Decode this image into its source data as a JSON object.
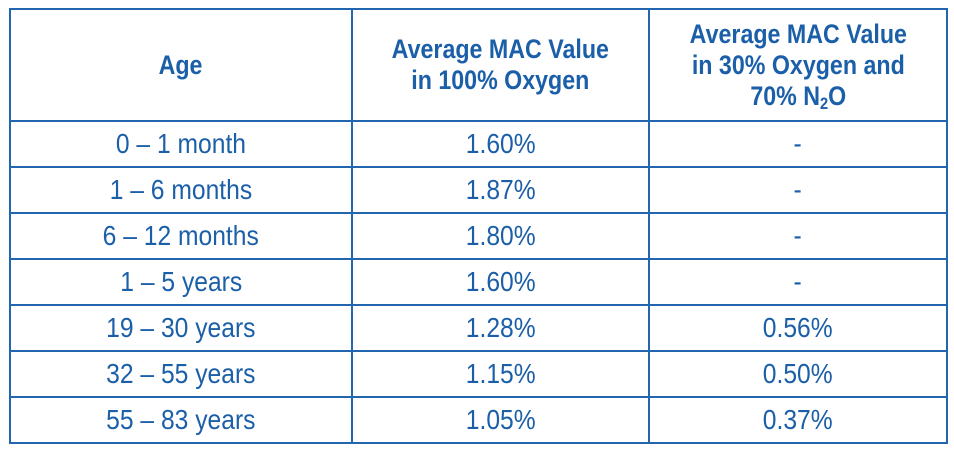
{
  "table": {
    "headers": {
      "age": "Age",
      "mac_100_line1": "Average MAC Value",
      "mac_100_line2": "in 100% Oxygen",
      "mac_30_line1": "Average MAC Value",
      "mac_30_line2": "in 30% Oxygen and",
      "mac_30_line3_pre": "70% N",
      "mac_30_line3_sub": "2",
      "mac_30_line3_post": "O"
    },
    "rows": [
      {
        "age": "0 – 1 month",
        "mac_100": "1.60%",
        "mac_30": "-"
      },
      {
        "age": "1 – 6 months",
        "mac_100": "1.87%",
        "mac_30": "-"
      },
      {
        "age": "6 – 12 months",
        "mac_100": "1.80%",
        "mac_30": "-"
      },
      {
        "age": "1 – 5 years",
        "mac_100": "1.60%",
        "mac_30": "-"
      },
      {
        "age": "19 – 30 years",
        "mac_100": "1.28%",
        "mac_30": "0.56%"
      },
      {
        "age": "32 – 55 years",
        "mac_100": "1.15%",
        "mac_30": "0.50%"
      },
      {
        "age": "55 – 83 years",
        "mac_100": "1.05%",
        "mac_30": "0.37%"
      }
    ]
  },
  "colors": {
    "text": "#1b5fa8",
    "border": "#2166ae",
    "background": "#ffffff"
  }
}
